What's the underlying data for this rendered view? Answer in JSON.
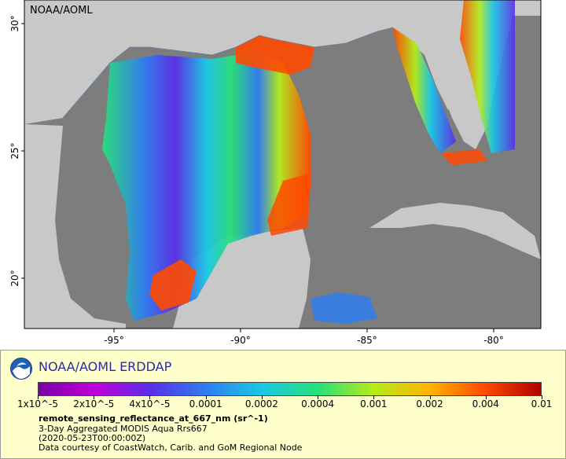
{
  "map": {
    "watermark": "NOAA/AOML",
    "lat_ticks": [
      {
        "value": 30,
        "label": "30°"
      },
      {
        "value": 25,
        "label": "25°"
      },
      {
        "value": 20,
        "label": "20°"
      }
    ],
    "lon_ticks": [
      {
        "value": -95,
        "label": "-95°"
      },
      {
        "value": -90,
        "label": "-90°"
      },
      {
        "value": -85,
        "label": "-85°"
      },
      {
        "value": -80,
        "label": "-80°"
      }
    ],
    "colors": {
      "land": "#c8c8c8",
      "nodata_ocean": "#7d7d7d",
      "panel": "#ffffcc",
      "title_blue": "#2a2aa8"
    }
  },
  "legend": {
    "title": "NOAA/AOML ERDDAP",
    "colorbar_labels": [
      "1x10^-5",
      "2x10^-5",
      "4x10^-5",
      "0.0001",
      "0.0002",
      "0.0004",
      "0.001",
      "0.002",
      "0.004",
      "0.01"
    ],
    "colorbar_colors": [
      "#7a00a8",
      "#c000d8",
      "#5a2ee8",
      "#2f7df0",
      "#19c8e6",
      "#28e07a",
      "#b4ec1a",
      "#ffb400",
      "#ff4a00",
      "#b00000"
    ],
    "variable": "remote_sensing_reflectance_at_667_nm (sr^-1)",
    "line1": "3-Day Aggregated MODIS Aqua Rrs667",
    "line2": "(2020-05-23T00:00:00Z)",
    "line3": "Data courtesy of CoastWatch, Carib. and GoM Regional Node"
  }
}
